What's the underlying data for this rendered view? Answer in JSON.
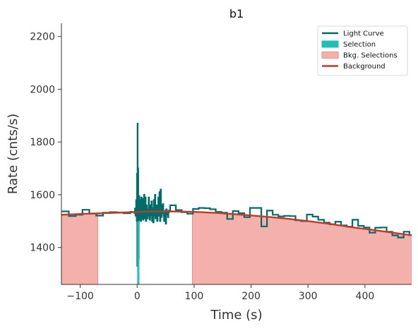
{
  "chart_data": {
    "type": "line",
    "title": "b1",
    "xlabel": "Time (s)",
    "ylabel": "Rate (cnts/s)",
    "xlim": [
      -133,
      482
    ],
    "ylim": [
      1260,
      2250
    ],
    "xticks": [
      -100,
      0,
      100,
      200,
      300,
      400
    ],
    "xtick_labels": [
      "−100",
      "0",
      "100",
      "200",
      "300",
      "400"
    ],
    "yticks": [
      1400,
      1600,
      1800,
      2000,
      2200
    ],
    "ytick_labels": [
      "1400",
      "1600",
      "1800",
      "2000",
      "2200"
    ],
    "grid": false,
    "legend_position": "top-right",
    "legend": [
      {
        "label": "Light Curve",
        "kind": "line",
        "color": "#006d6b"
      },
      {
        "label": "Selection",
        "kind": "patch",
        "color": "#1fbfb8"
      },
      {
        "label": "Bkg. Selections",
        "kind": "patch",
        "color": "#f4b0aa"
      },
      {
        "label": "Background",
        "kind": "line",
        "color": "#c0392b"
      }
    ],
    "colors": {
      "light_curve": "#006d6b",
      "selection": "#1fbfb8",
      "bkg_fill": "#f4b0aa",
      "bkg_edge": "#ee8f87",
      "background": "#c0392b"
    },
    "bkg_selections": [
      [
        -133,
        -69
      ],
      [
        97,
        482
      ]
    ],
    "selection": [
      0,
      4
    ],
    "light_curve_coarse": {
      "edges": [
        -133,
        -120,
        -108,
        -96,
        -84,
        -72,
        -60,
        -48,
        -36,
        -24,
        -12,
        -6
      ],
      "values": [
        1537,
        1519,
        1524,
        1543,
        1529,
        1521,
        1532,
        1534,
        1533,
        1530,
        1535
      ]
    },
    "light_curve_spike": {
      "x": [
        -6,
        -4,
        -3,
        -2,
        -1,
        -0.5,
        0,
        0.5,
        1,
        1.5,
        2,
        3,
        4,
        5,
        6,
        7,
        8,
        9,
        10,
        11,
        12,
        13,
        14,
        15,
        16,
        17,
        18,
        19,
        20,
        21,
        22,
        23,
        24,
        25,
        26,
        27,
        28,
        29,
        30,
        31,
        32,
        33,
        34,
        35,
        36,
        37,
        38,
        39,
        40,
        41,
        42,
        43,
        44,
        45,
        46,
        47,
        48,
        49,
        50,
        51,
        52,
        53,
        54,
        55,
        56
      ],
      "y": [
        1530,
        1548,
        1520,
        1580,
        1500,
        1680,
        1330,
        1870,
        1340,
        1700,
        1360,
        1595,
        1505,
        1580,
        1500,
        1590,
        1510,
        1585,
        1505,
        1565,
        1600,
        1510,
        1590,
        1500,
        1560,
        1545,
        1510,
        1540,
        1590,
        1520,
        1505,
        1560,
        1520,
        1575,
        1500,
        1550,
        1495,
        1580,
        1520,
        1600,
        1510,
        1530,
        1560,
        1500,
        1545,
        1590,
        1520,
        1610,
        1500,
        1620,
        1515,
        1560,
        1530,
        1565,
        1520,
        1500,
        1530,
        1540,
        1490,
        1545,
        1525,
        1535,
        1515,
        1540,
        1530
      ]
    },
    "light_curve_tail": {
      "edges": [
        56,
        58,
        68,
        78,
        88,
        98,
        108,
        118,
        128,
        138,
        148,
        158,
        168,
        178,
        188,
        198,
        208,
        218,
        228,
        238,
        248,
        258,
        268,
        278,
        288,
        298,
        308,
        318,
        328,
        338,
        348,
        358,
        368,
        378,
        388,
        398,
        408,
        418,
        428,
        438,
        448,
        458,
        468,
        478,
        482
      ],
      "values": [
        1540,
        1560,
        1542,
        1534,
        1528,
        1546,
        1550,
        1549,
        1545,
        1535,
        1532,
        1508,
        1538,
        1530,
        1515,
        1550,
        1550,
        1480,
        1540,
        1524,
        1518,
        1520,
        1519,
        1503,
        1500,
        1525,
        1517,
        1505,
        1494,
        1488,
        1498,
        1484,
        1479,
        1505,
        1482,
        1476,
        1456,
        1475,
        1476,
        1460,
        1446,
        1438,
        1460,
        1447
      ]
    },
    "background_model": {
      "x": [
        -133,
        -100,
        -60,
        -20,
        20,
        60,
        100,
        140,
        180,
        220,
        260,
        300,
        340,
        380,
        420,
        460,
        482
      ],
      "y": [
        1524,
        1527,
        1530,
        1533,
        1536,
        1537,
        1535,
        1531,
        1525,
        1518,
        1510,
        1500,
        1489,
        1476,
        1465,
        1453,
        1446
      ]
    }
  }
}
